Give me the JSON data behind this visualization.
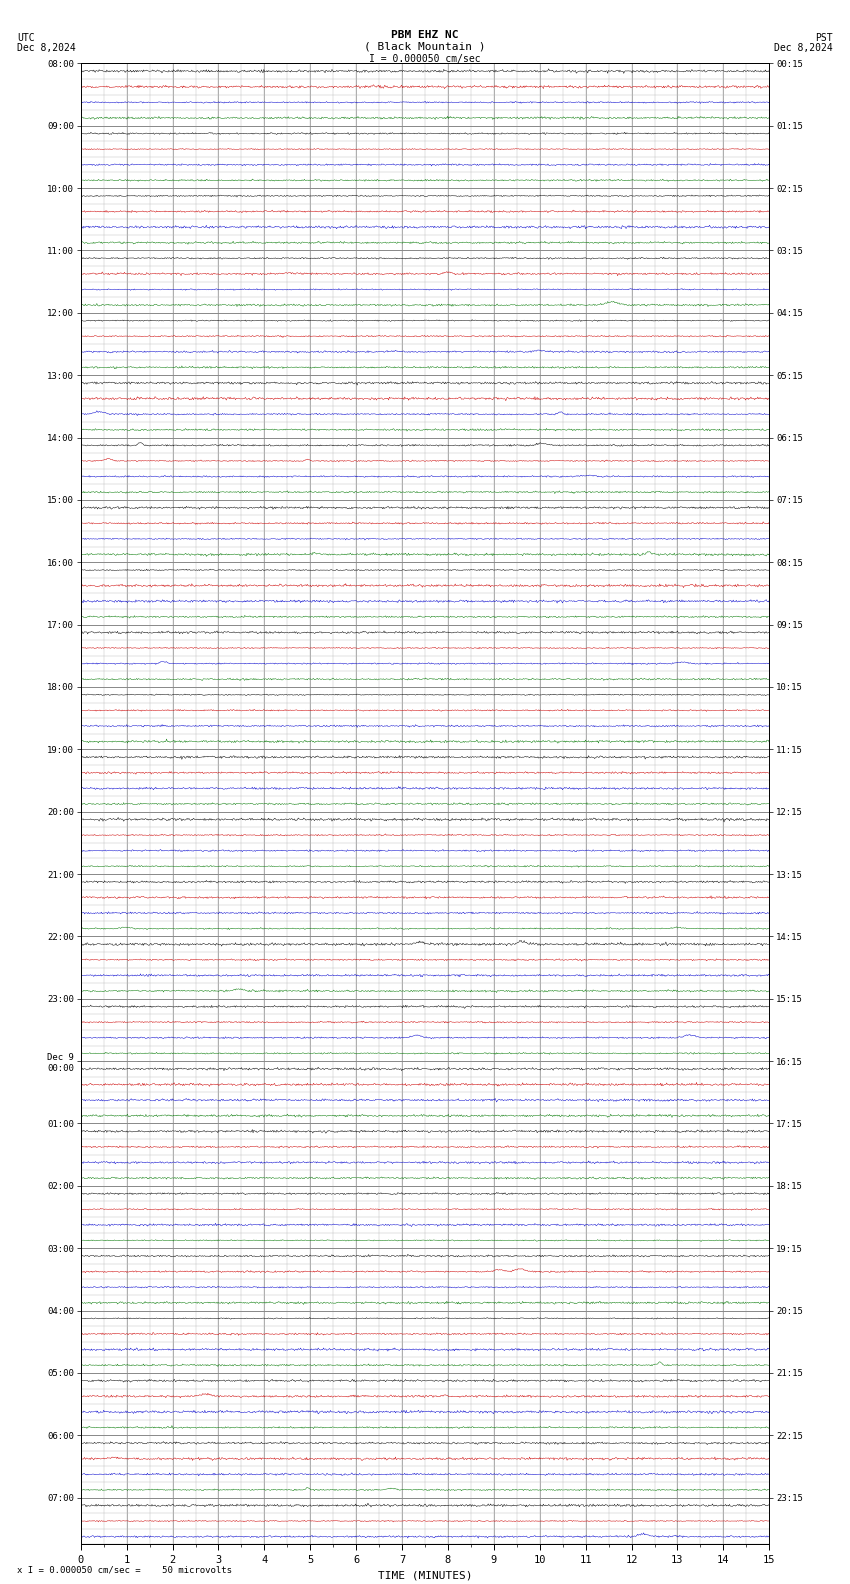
{
  "title_line1": "PBM EHZ NC",
  "title_line2": "( Black Mountain )",
  "scale_label": "I = 0.000050 cm/sec",
  "footer_label": "x I = 0.000050 cm/sec =    50 microvolts",
  "utc_label": "UTC\nDec 8,2024",
  "pst_label": "PST\nDec 8,2024",
  "xlabel": "TIME (MINUTES)",
  "left_times": [
    "08:00",
    "",
    "",
    "",
    "09:00",
    "",
    "",
    "",
    "10:00",
    "",
    "",
    "",
    "11:00",
    "",
    "",
    "",
    "12:00",
    "",
    "",
    "",
    "13:00",
    "",
    "",
    "",
    "14:00",
    "",
    "",
    "",
    "15:00",
    "",
    "",
    "",
    "16:00",
    "",
    "",
    "",
    "17:00",
    "",
    "",
    "",
    "18:00",
    "",
    "",
    "",
    "19:00",
    "",
    "",
    "",
    "20:00",
    "",
    "",
    "",
    "21:00",
    "",
    "",
    "",
    "22:00",
    "",
    "",
    "",
    "23:00",
    "",
    "",
    "",
    "Dec 9\n00:00",
    "",
    "",
    "",
    "01:00",
    "",
    "",
    "",
    "02:00",
    "",
    "",
    "",
    "03:00",
    "",
    "",
    "",
    "04:00",
    "",
    "",
    "",
    "05:00",
    "",
    "",
    "",
    "06:00",
    "",
    "",
    "",
    "07:00",
    "",
    ""
  ],
  "right_times": [
    "00:15",
    "",
    "",
    "",
    "01:15",
    "",
    "",
    "",
    "02:15",
    "",
    "",
    "",
    "03:15",
    "",
    "",
    "",
    "04:15",
    "",
    "",
    "",
    "05:15",
    "",
    "",
    "",
    "06:15",
    "",
    "",
    "",
    "07:15",
    "",
    "",
    "",
    "08:15",
    "",
    "",
    "",
    "09:15",
    "",
    "",
    "",
    "10:15",
    "",
    "",
    "",
    "11:15",
    "",
    "",
    "",
    "12:15",
    "",
    "",
    "",
    "13:15",
    "",
    "",
    "",
    "14:15",
    "",
    "",
    "",
    "15:15",
    "",
    "",
    "",
    "16:15",
    "",
    "",
    "",
    "17:15",
    "",
    "",
    "",
    "18:15",
    "",
    "",
    "",
    "19:15",
    "",
    "",
    "",
    "20:15",
    "",
    "",
    "",
    "21:15",
    "",
    "",
    "",
    "22:15",
    "",
    "",
    "",
    "23:15",
    "",
    ""
  ],
  "n_rows": 95,
  "minutes_per_row": 15,
  "x_ticks": [
    0,
    1,
    2,
    3,
    4,
    5,
    6,
    7,
    8,
    9,
    10,
    11,
    12,
    13,
    14,
    15
  ],
  "colors": {
    "black": "#000000",
    "red": "#cc0000",
    "blue": "#0000cc",
    "green": "#007700",
    "background": "#ffffff",
    "grid_major": "#888888",
    "grid_minor": "#bbbbbb"
  },
  "fig_width": 8.5,
  "fig_height": 15.84,
  "dpi": 100
}
